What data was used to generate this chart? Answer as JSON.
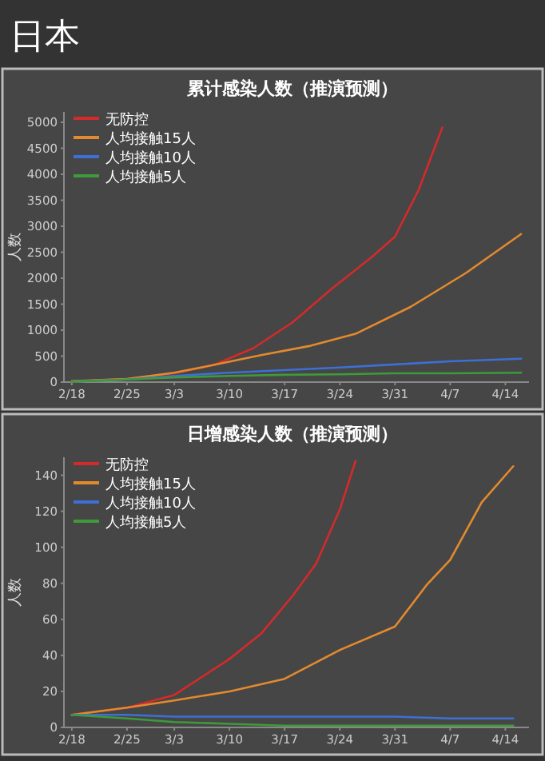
{
  "chart_data": [
    {
      "type": "line",
      "title": "累计感染人数（推演预测）",
      "ylabel": "人数",
      "annotations": [
        "日本"
      ],
      "legend": "top left",
      "xlim": [
        "--02-17",
        "--04-17"
      ],
      "xticks": [
        {
          "value": "--02-18",
          "label": "2/18"
        },
        {
          "value": "--02-25",
          "label": "2/25"
        },
        {
          "value": "--03-03",
          "label": "3/3"
        },
        {
          "value": "--03-10",
          "label": "3/10"
        },
        {
          "value": "--03-17",
          "label": "3/17"
        },
        {
          "value": "--03-24",
          "label": "3/24"
        },
        {
          "value": "--03-31",
          "label": "3/31"
        },
        {
          "value": "--04-07",
          "label": "4/7"
        },
        {
          "value": "--04-14",
          "label": "4/14"
        }
      ],
      "ylim": [
        0,
        5200
      ],
      "yticks": [
        0,
        500,
        1000,
        1500,
        2000,
        2500,
        3000,
        3500,
        4000,
        4500,
        5000
      ],
      "series": [
        {
          "name": "无防控",
          "color": "#d42a2a",
          "x": [
            "--02-18",
            "--02-25",
            "--03-03",
            "--03-08",
            "--03-13",
            "--03-18",
            "--03-23",
            "--03-28",
            "--03-31",
            "--04-03",
            "--04-06"
          ],
          "values": [
            10,
            60,
            170,
            330,
            650,
            1150,
            1800,
            2400,
            2800,
            3700,
            4900
          ]
        },
        {
          "name": "人均接触15人",
          "color": "#e38a2e",
          "x": [
            "--02-18",
            "--02-25",
            "--03-03",
            "--03-08",
            "--03-14",
            "--03-20",
            "--03-26",
            "--04-02",
            "--04-09",
            "--04-16"
          ],
          "values": [
            20,
            60,
            180,
            330,
            520,
            690,
            930,
            1450,
            2100,
            2850
          ]
        },
        {
          "name": "人均接触10人",
          "color": "#3d6fd6",
          "x": [
            "--02-18",
            "--02-25",
            "--03-03",
            "--03-10",
            "--03-17",
            "--03-24",
            "--03-31",
            "--04-07",
            "--04-16"
          ],
          "values": [
            10,
            50,
            120,
            180,
            230,
            280,
            340,
            400,
            450
          ]
        },
        {
          "name": "人均接触5人",
          "color": "#3e9a3a",
          "x": [
            "--02-18",
            "--02-25",
            "--03-03",
            "--03-10",
            "--03-17",
            "--03-24",
            "--03-31",
            "--04-07",
            "--04-16"
          ],
          "values": [
            10,
            50,
            90,
            120,
            140,
            150,
            170,
            170,
            180
          ]
        }
      ]
    },
    {
      "type": "line",
      "title": "日增感染人数（推演预测）",
      "ylabel": "人数",
      "legend": "top left",
      "xlim": [
        "--02-17",
        "--04-17"
      ],
      "xticks": [
        {
          "value": "--02-18",
          "label": "2/18"
        },
        {
          "value": "--02-25",
          "label": "2/25"
        },
        {
          "value": "--03-03",
          "label": "3/3"
        },
        {
          "value": "--03-10",
          "label": "3/10"
        },
        {
          "value": "--03-17",
          "label": "3/17"
        },
        {
          "value": "--03-24",
          "label": "3/24"
        },
        {
          "value": "--03-31",
          "label": "3/31"
        },
        {
          "value": "--04-07",
          "label": "4/7"
        },
        {
          "value": "--04-14",
          "label": "4/14"
        }
      ],
      "ylim": [
        0,
        150
      ],
      "yticks": [
        0,
        20,
        40,
        60,
        80,
        100,
        120,
        140
      ],
      "series": [
        {
          "name": "无防控",
          "color": "#d42a2a",
          "x": [
            "--02-18",
            "--02-25",
            "--03-03",
            "--03-10",
            "--03-14",
            "--03-18",
            "--03-21",
            "--03-24",
            "--03-26"
          ],
          "values": [
            7,
            11,
            18,
            38,
            52,
            73,
            91,
            121,
            148
          ]
        },
        {
          "name": "人均接触15人",
          "color": "#e38a2e",
          "x": [
            "--02-18",
            "--02-25",
            "--03-03",
            "--03-10",
            "--03-17",
            "--03-24",
            "--03-31",
            "--04-04",
            "--04-07",
            "--04-11",
            "--04-15"
          ],
          "values": [
            7,
            11,
            15,
            20,
            27,
            43,
            56,
            79,
            93,
            125,
            145
          ]
        },
        {
          "name": "人均接触10人",
          "color": "#3d6fd6",
          "x": [
            "--02-18",
            "--02-25",
            "--03-03",
            "--03-10",
            "--03-17",
            "--03-24",
            "--03-31",
            "--04-07",
            "--04-15"
          ],
          "values": [
            7,
            7,
            6,
            6,
            6,
            6,
            6,
            5,
            5
          ]
        },
        {
          "name": "人均接触5人",
          "color": "#3e9a3a",
          "x": [
            "--02-18",
            "--02-25",
            "--03-03",
            "--03-10",
            "--03-17",
            "--03-24",
            "--03-31",
            "--04-07",
            "--04-15"
          ],
          "values": [
            7,
            5,
            3,
            2,
            1,
            1,
            1,
            1,
            1
          ]
        }
      ]
    }
  ]
}
